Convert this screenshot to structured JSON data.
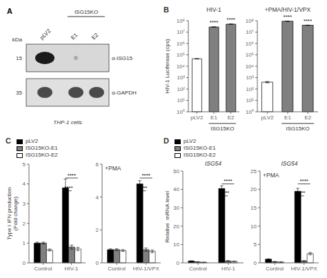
{
  "chart_data": [
    {
      "type": "blot",
      "categories": [
        "pLV2",
        "E1",
        "E2"
      ],
      "ylabel": "kDa",
      "series": [
        {
          "name": "α-ISG15",
          "label": "15"
        },
        {
          "name": "α-GAPDH",
          "label": "35"
        }
      ],
      "annotations": [
        {
          "text": "A",
          "kind": "panel"
        },
        {
          "text": "ISG15KO",
          "between": [
            "E1",
            "E2"
          ]
        },
        {
          "text": "THP-1 cells",
          "kind": "caption"
        }
      ]
    },
    {
      "type": "bar",
      "title": "HIV-1",
      "categories": [
        "pLV2",
        "E1",
        "E2"
      ],
      "values": [
        45000,
        28000000,
        50000000
      ],
      "error": [
        2000,
        500000,
        800000
      ],
      "colors": [
        "white",
        "#808080",
        "#808080"
      ],
      "ylabel": "HIV-1 Luciferase (cps)",
      "log": "y",
      "ylim": [
        1,
        100000000
      ],
      "yticks": [
        {
          "value": 1,
          "label": "10⁰"
        },
        {
          "value": 10,
          "label": "10¹"
        },
        {
          "value": 100,
          "label": "10²"
        },
        {
          "value": 1000,
          "label": "10³"
        },
        {
          "value": 10000,
          "label": "10⁴"
        },
        {
          "value": 100000,
          "label": "10⁵"
        },
        {
          "value": 1000000,
          "label": "10⁶"
        },
        {
          "value": 10000000,
          "label": "10⁷"
        },
        {
          "value": 100000000,
          "label": "10⁸"
        }
      ],
      "annotations": [
        {
          "text": "B",
          "kind": "panel"
        },
        {
          "text": "****",
          "x": "E1"
        },
        {
          "text": "****",
          "x": "E2"
        },
        {
          "text": "ISG15KO",
          "between": [
            "E1",
            "E2"
          ]
        }
      ]
    },
    {
      "type": "bar",
      "title": "+PMA/HIV-1/VPX",
      "categories": [
        "pLV2",
        "E1",
        "E2"
      ],
      "values": [
        400,
        90000000,
        40000000
      ],
      "error": [
        50,
        1000000,
        1000000
      ],
      "colors": [
        "white",
        "#808080",
        "#808080"
      ],
      "log": "y",
      "ylim": [
        1,
        100000000
      ],
      "yticks": [
        {
          "value": 1,
          "label": "10⁰"
        },
        {
          "value": 10,
          "label": "10¹"
        },
        {
          "value": 100,
          "label": "10²"
        },
        {
          "value": 1000,
          "label": "10³"
        },
        {
          "value": 10000,
          "label": "10⁴"
        },
        {
          "value": 100000,
          "label": "10⁵"
        },
        {
          "value": 1000000,
          "label": "10⁶"
        },
        {
          "value": 10000000,
          "label": "10⁷"
        },
        {
          "value": 100000000,
          "label": "10⁸"
        }
      ],
      "annotations": [
        {
          "text": "****",
          "x": "E1"
        },
        {
          "text": "****",
          "x": "E2"
        },
        {
          "text": "ISG15KO",
          "between": [
            "E1",
            "E2"
          ]
        }
      ]
    },
    {
      "type": "bar",
      "categories": [
        "Control",
        "HIV-1"
      ],
      "series": [
        {
          "name": "pLV2",
          "color": "black",
          "values": [
            1.0,
            3.8
          ],
          "error": [
            0.05,
            0.45
          ]
        },
        {
          "name": "ISG15KO-E1",
          "color": "#808080",
          "values": [
            1.0,
            0.8
          ],
          "error": [
            0.05,
            0.1
          ]
        },
        {
          "name": "ISG15KO-E2",
          "color": "white",
          "values": [
            0.65,
            0.7
          ],
          "error": [
            0.05,
            0.08
          ]
        }
      ],
      "ylabel": "Type I IFN production\n(Fold change)",
      "ylim": [
        0,
        5
      ],
      "yticks": [
        0,
        1,
        2,
        3,
        4,
        5
      ],
      "legend": "top",
      "annotations": [
        {
          "text": "C",
          "kind": "panel"
        },
        {
          "text": "****",
          "x": "HIV-1",
          "between": [
            "pLV2",
            "ISG15KO-E2"
          ]
        },
        {
          "text": "****",
          "x": "HIV-1",
          "between": [
            "pLV2",
            "ISG15KO-E1"
          ]
        }
      ]
    },
    {
      "type": "bar",
      "title": "+PMA",
      "categories": [
        "Control",
        "HIV-1/VPX"
      ],
      "series": [
        {
          "name": "pLV2",
          "color": "black",
          "values": [
            0.8,
            4.8
          ],
          "error": [
            0.05,
            0.2
          ]
        },
        {
          "name": "ISG15KO-E1",
          "color": "#808080",
          "values": [
            0.8,
            0.8
          ],
          "error": [
            0.05,
            0.1
          ]
        },
        {
          "name": "ISG15KO-E2",
          "color": "white",
          "values": [
            0.75,
            0.7
          ],
          "error": [
            0.05,
            0.08
          ]
        }
      ],
      "ylim": [
        0,
        6
      ],
      "yticks": [
        0,
        2,
        4,
        6
      ],
      "annotations": [
        {
          "text": "****",
          "x": "HIV-1/VPX",
          "between": [
            "pLV2",
            "ISG15KO-E2"
          ]
        },
        {
          "text": "****",
          "x": "HIV-1/VPX",
          "between": [
            "pLV2",
            "ISG15KO-E1"
          ]
        }
      ]
    },
    {
      "type": "bar",
      "subtitle": "ISG54",
      "categories": [
        "Control",
        "HIV-1"
      ],
      "series": [
        {
          "name": "pLV2",
          "color": "black",
          "values": [
            1.0,
            40.5
          ],
          "error": [
            0.1,
            1.5
          ]
        },
        {
          "name": "ISG15KO-E1",
          "color": "#808080",
          "values": [
            0.5,
            1.0
          ],
          "error": [
            0.1,
            0.2
          ]
        },
        {
          "name": "ISG15KO-E2",
          "color": "white",
          "values": [
            0.3,
            0.8
          ],
          "error": [
            0.05,
            0.1
          ]
        }
      ],
      "ylabel": "Relative  mRNA level",
      "ylim": [
        0,
        50
      ],
      "yticks": [
        0,
        10,
        20,
        30,
        40,
        50
      ],
      "legend": "top",
      "annotations": [
        {
          "text": "D",
          "kind": "panel"
        },
        {
          "text": "****",
          "x": "HIV-1",
          "between": [
            "pLV2",
            "ISG15KO-E2"
          ]
        },
        {
          "text": "****",
          "x": "HIV-1",
          "between": [
            "pLV2",
            "ISG15KO-E1"
          ]
        }
      ]
    },
    {
      "type": "bar",
      "subtitle": "ISG54",
      "title": "+PMA",
      "categories": [
        "Control",
        "HIV-1/VPX"
      ],
      "series": [
        {
          "name": "pLV2",
          "color": "black",
          "values": [
            1.0,
            19.5
          ],
          "error": [
            0.1,
            0.8
          ]
        },
        {
          "name": "ISG15KO-E1",
          "color": "#808080",
          "values": [
            0.3,
            0.5
          ],
          "error": [
            0.05,
            0.1
          ]
        },
        {
          "name": "ISG15KO-E2",
          "color": "white",
          "values": [
            0.2,
            2.5
          ],
          "error": [
            0.05,
            0.3
          ]
        }
      ],
      "ylim": [
        0,
        25
      ],
      "yticks": [
        0,
        5,
        10,
        15,
        20,
        25
      ],
      "annotations": [
        {
          "text": "****",
          "x": "HIV-1/VPX",
          "between": [
            "pLV2",
            "ISG15KO-E2"
          ]
        },
        {
          "text": "****",
          "x": "HIV-1/VPX",
          "between": [
            "pLV2",
            "ISG15KO-E1"
          ]
        }
      ]
    }
  ]
}
